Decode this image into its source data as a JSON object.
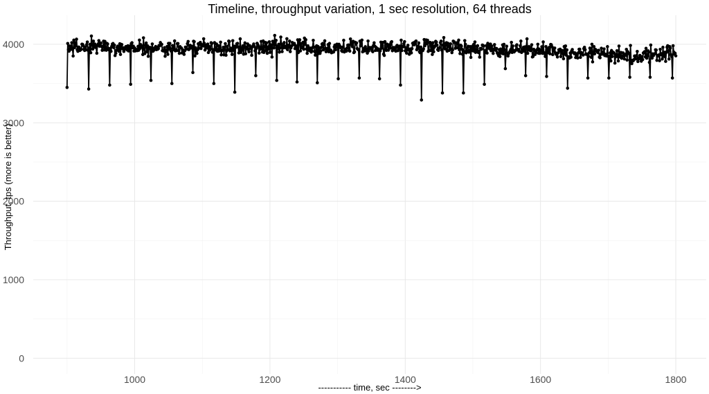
{
  "chart_data": {
    "type": "line",
    "title": "Timeline, throughput variation, 1 sec resolution, 64 threads",
    "xlabel": "----------- time, sec -------->",
    "ylabel": "Throughput, tps (more is better)",
    "xlim": [
      850,
      1845
    ],
    "ylim": [
      -200,
      4370
    ],
    "x_ticks": [
      1000,
      1200,
      1400,
      1600,
      1800
    ],
    "y_ticks": [
      0,
      1000,
      2000,
      3000,
      4000
    ],
    "grid": true,
    "legend": "none",
    "line_color": "#000000",
    "marker": "point",
    "x_start": 900,
    "x_step": 1,
    "baseline": [
      [
        900,
        3960
      ],
      [
        950,
        3970
      ],
      [
        1000,
        3960
      ],
      [
        1050,
        3950
      ],
      [
        1100,
        3960
      ],
      [
        1150,
        3950
      ],
      [
        1200,
        3970
      ],
      [
        1250,
        3960
      ],
      [
        1300,
        3970
      ],
      [
        1350,
        3950
      ],
      [
        1400,
        3970
      ],
      [
        1450,
        3980
      ],
      [
        1500,
        3950
      ],
      [
        1550,
        3940
      ],
      [
        1600,
        3920
      ],
      [
        1650,
        3910
      ],
      [
        1700,
        3880
      ],
      [
        1750,
        3860
      ],
      [
        1800,
        3900
      ]
    ],
    "dips": [
      [
        900,
        3450
      ],
      [
        932,
        3430
      ],
      [
        963,
        3480
      ],
      [
        994,
        3490
      ],
      [
        1024,
        3540
      ],
      [
        1055,
        3500
      ],
      [
        1086,
        3640
      ],
      [
        1117,
        3500
      ],
      [
        1148,
        3390
      ],
      [
        1179,
        3600
      ],
      [
        1210,
        3540
      ],
      [
        1240,
        3520
      ],
      [
        1270,
        3510
      ],
      [
        1301,
        3560
      ],
      [
        1332,
        3570
      ],
      [
        1362,
        3560
      ],
      [
        1393,
        3480
      ],
      [
        1424,
        3290
      ],
      [
        1455,
        3380
      ],
      [
        1486,
        3380
      ],
      [
        1517,
        3490
      ],
      [
        1548,
        3690
      ],
      [
        1578,
        3600
      ],
      [
        1609,
        3590
      ],
      [
        1640,
        3440
      ],
      [
        1670,
        3570
      ],
      [
        1701,
        3570
      ],
      [
        1732,
        3580
      ],
      [
        1762,
        3580
      ],
      [
        1795,
        3570
      ]
    ]
  }
}
